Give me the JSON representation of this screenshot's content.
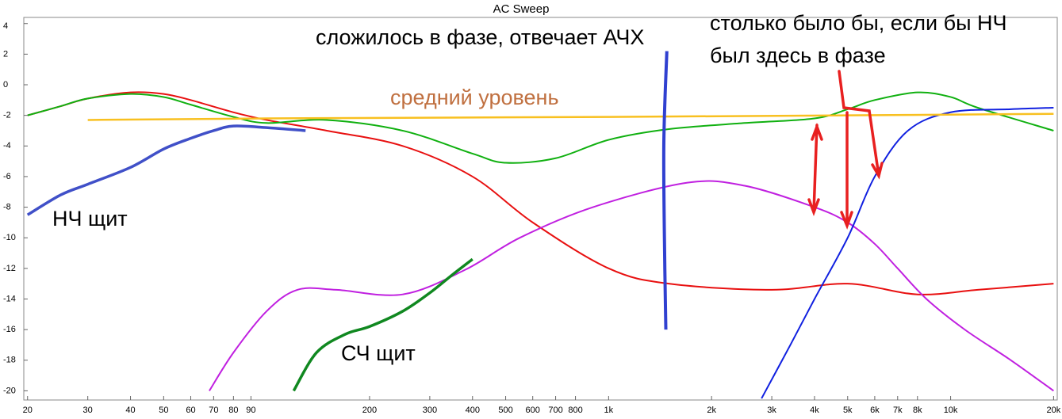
{
  "chart_data": {
    "type": "line",
    "title": "AC Sweep",
    "log_x": true,
    "xlim": [
      19.5,
      20500
    ],
    "ylim": [
      -20.6,
      4.4
    ],
    "xticks": [
      20,
      30,
      40,
      50,
      60,
      70,
      80,
      90,
      200,
      300,
      400,
      500,
      600,
      700,
      800,
      {
        "value": 1000,
        "label": "1k"
      },
      {
        "value": 2000,
        "label": "2k"
      },
      {
        "value": 3000,
        "label": "3k"
      },
      {
        "value": 4000,
        "label": "4k"
      },
      {
        "value": 5000,
        "label": "5k"
      },
      {
        "value": 6000,
        "label": "6k"
      },
      {
        "value": 7000,
        "label": "7k"
      },
      {
        "value": 8000,
        "label": "8k"
      },
      {
        "value": 10000,
        "label": "10k"
      },
      {
        "value": 20000,
        "label": "20k"
      }
    ],
    "yticks": [
      4,
      2,
      0,
      -2,
      -4,
      -6,
      -8,
      -10,
      -12,
      -14,
      -16,
      -18,
      -20
    ],
    "series": [
      {
        "color": "#e81010",
        "width": 2,
        "x": [
          20,
          25,
          30,
          40,
          50,
          60,
          80,
          100,
          150,
          250,
          400,
          600,
          1000,
          1500,
          3000,
          5000,
          8000,
          12000,
          20000
        ],
        "values": [
          -2,
          -1.4,
          -0.9,
          -0.5,
          -0.6,
          -1,
          -1.8,
          -2.3,
          -3,
          -4,
          -6,
          -9,
          -12,
          -13,
          -13.4,
          -13,
          -13.7,
          -13.4,
          -13
        ]
      },
      {
        "color": "#10b010",
        "width": 2,
        "x": [
          20,
          25,
          30,
          40,
          50,
          60,
          80,
          100,
          150,
          250,
          400,
          500,
          700,
          1000,
          1500,
          2500,
          4000,
          5000,
          6000,
          8000,
          10000,
          12000,
          20000
        ],
        "values": [
          -2,
          -1.4,
          -0.9,
          -0.6,
          -0.8,
          -1.3,
          -2.1,
          -2.5,
          -2.3,
          -3,
          -4.5,
          -5.1,
          -4.8,
          -3.6,
          -2.9,
          -2.5,
          -2.2,
          -1.6,
          -1,
          -0.5,
          -0.8,
          -1.5,
          -3
        ]
      },
      {
        "color": "#c020e0",
        "width": 2,
        "x": [
          68,
          80,
          100,
          123,
          160,
          250,
          380,
          550,
          900,
          1700,
          2500,
          4000,
          5000,
          6000,
          7000,
          8500,
          11000,
          15000,
          20000
        ],
        "values": [
          -20,
          -17.5,
          -14.8,
          -13.4,
          -13.4,
          -13.7,
          -12.1,
          -10,
          -8,
          -6.4,
          -6.6,
          -8,
          -9,
          -10.4,
          -12,
          -14,
          -16,
          -18,
          -20
        ]
      },
      {
        "color": "#1020e0",
        "width": 2,
        "x": [
          2800,
          3400,
          4000,
          5000,
          6000,
          7500,
          10000,
          15000,
          20000
        ],
        "values": [
          -20.5,
          -17,
          -14,
          -10,
          -6,
          -3,
          -1.8,
          -1.6,
          -1.5
        ]
      },
      {
        "color": "#f8c020",
        "width": 2.5,
        "x": [
          30,
          100,
          1000,
          5000,
          20000
        ],
        "values": [
          -2.3,
          -2.2,
          -2.1,
          -2,
          -1.9
        ]
      },
      {
        "color": "#4050c8",
        "width": 3.5,
        "x": [
          20,
          25,
          30,
          40,
          50,
          60,
          70,
          80,
          100,
          130
        ],
        "values": [
          -8.5,
          -7.2,
          -6.5,
          -5.4,
          -4.2,
          -3.5,
          -3,
          -2.7,
          -2.8,
          -3
        ]
      },
      {
        "color": "#108820",
        "width": 3.5,
        "x": [
          120,
          140,
          170,
          200,
          250,
          300,
          350,
          400
        ],
        "values": [
          -20,
          -17.5,
          -16.3,
          -15.8,
          -14.8,
          -13.6,
          -12.4,
          -11.4
        ]
      },
      {
        "color": "#3040d0",
        "width": 4,
        "x": [
          1480,
          1450,
          1460,
          1470
        ],
        "values": [
          2.2,
          -4,
          -12,
          -16
        ]
      }
    ],
    "annotations": {
      "in_phase": "сложилось в фазе, отвечает АЧХ",
      "would_be": [
        "столько было бы, если бы НЧ",
        "был здесь в фазе"
      ],
      "average": "средний уровень",
      "lf": "НЧ щит",
      "mf": "СЧ щит"
    }
  }
}
